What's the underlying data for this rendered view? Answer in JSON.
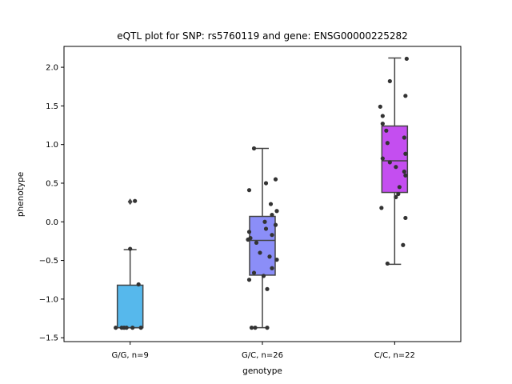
{
  "chart_data": {
    "type": "box",
    "title": "eQTL plot for SNP: rs5760119 and gene: ENSG00000225282",
    "xlabel": "genotype",
    "ylabel": "phenotype",
    "ylim": [
      -1.55,
      2.27
    ],
    "yticks": [
      -1.5,
      -1.0,
      -0.5,
      0.0,
      0.5,
      1.0,
      1.5,
      2.0
    ],
    "ytick_labels": [
      "−1.5",
      "−1.0",
      "−0.5",
      "0.0",
      "0.5",
      "1.0",
      "1.5",
      "2.0"
    ],
    "grid": false,
    "legend": "none",
    "categories": [
      "G/G, n=9",
      "G/C, n=26",
      "C/C, n=22"
    ],
    "boxes": [
      {
        "category": "G/G, n=9",
        "color": "#56b8ec",
        "whisker_low": -1.37,
        "q1": -1.37,
        "median": -1.37,
        "q3": -0.82,
        "whisker_high": -0.36,
        "outliers": [
          0.26
        ]
      },
      {
        "category": "G/C, n=26",
        "color": "#8b8ef8",
        "whisker_low": -1.37,
        "q1": -0.69,
        "median": -0.24,
        "q3": 0.07,
        "whisker_high": 0.95,
        "outliers": []
      },
      {
        "category": "C/C, n=22",
        "color": "#c44ef0",
        "whisker_low": -0.55,
        "q1": 0.38,
        "median": 0.79,
        "q3": 1.24,
        "whisker_high": 2.12,
        "outliers": []
      }
    ],
    "points": [
      [
        {
          "j": -0.12,
          "y": -1.37
        },
        {
          "j": -0.07,
          "y": -1.37
        },
        {
          "j": -0.03,
          "y": -1.37
        },
        {
          "j": 0.02,
          "y": -1.37
        },
        {
          "j": 0.09,
          "y": -1.37
        },
        {
          "j": 0.0,
          "y": -0.35
        },
        {
          "j": 0.07,
          "y": -0.81
        },
        {
          "j": 0.04,
          "y": 0.27
        },
        {
          "j": -0.05,
          "y": -1.37
        }
      ],
      [
        {
          "j": -0.09,
          "y": -1.37
        },
        {
          "j": -0.06,
          "y": -1.37
        },
        {
          "j": 0.04,
          "y": -1.37
        },
        {
          "j": -0.07,
          "y": 0.95
        },
        {
          "j": 0.11,
          "y": 0.55
        },
        {
          "j": 0.03,
          "y": 0.5
        },
        {
          "j": -0.11,
          "y": 0.41
        },
        {
          "j": 0.07,
          "y": 0.23
        },
        {
          "j": 0.12,
          "y": 0.14
        },
        {
          "j": 0.08,
          "y": 0.09
        },
        {
          "j": 0.02,
          "y": 0.0
        },
        {
          "j": 0.11,
          "y": -0.04
        },
        {
          "j": 0.03,
          "y": -0.09
        },
        {
          "j": -0.11,
          "y": -0.13
        },
        {
          "j": 0.08,
          "y": -0.17
        },
        {
          "j": -0.1,
          "y": -0.21
        },
        {
          "j": -0.12,
          "y": -0.23
        },
        {
          "j": -0.05,
          "y": -0.27
        },
        {
          "j": -0.02,
          "y": -0.4
        },
        {
          "j": 0.06,
          "y": -0.45
        },
        {
          "j": 0.12,
          "y": -0.49
        },
        {
          "j": 0.08,
          "y": -0.6
        },
        {
          "j": -0.07,
          "y": -0.66
        },
        {
          "j": 0.01,
          "y": -0.7
        },
        {
          "j": -0.11,
          "y": -0.75
        },
        {
          "j": 0.04,
          "y": -0.87
        }
      ],
      [
        {
          "j": 0.1,
          "y": 2.11
        },
        {
          "j": -0.04,
          "y": 1.82
        },
        {
          "j": 0.09,
          "y": 1.63
        },
        {
          "j": -0.12,
          "y": 1.49
        },
        {
          "j": -0.1,
          "y": 1.37
        },
        {
          "j": -0.1,
          "y": 1.27
        },
        {
          "j": -0.07,
          "y": 1.18
        },
        {
          "j": 0.08,
          "y": 1.09
        },
        {
          "j": -0.06,
          "y": 1.02
        },
        {
          "j": 0.09,
          "y": 0.88
        },
        {
          "j": -0.1,
          "y": 0.82
        },
        {
          "j": -0.04,
          "y": 0.77
        },
        {
          "j": 0.01,
          "y": 0.71
        },
        {
          "j": 0.08,
          "y": 0.65
        },
        {
          "j": 0.09,
          "y": 0.6
        },
        {
          "j": 0.04,
          "y": 0.45
        },
        {
          "j": 0.03,
          "y": 0.36
        },
        {
          "j": 0.01,
          "y": 0.32
        },
        {
          "j": -0.11,
          "y": 0.18
        },
        {
          "j": 0.09,
          "y": 0.05
        },
        {
          "j": 0.07,
          "y": -0.3
        },
        {
          "j": -0.06,
          "y": -0.54
        }
      ]
    ],
    "outlier_color": "#444444",
    "point_color": "#333333",
    "line_color": "#444444"
  }
}
